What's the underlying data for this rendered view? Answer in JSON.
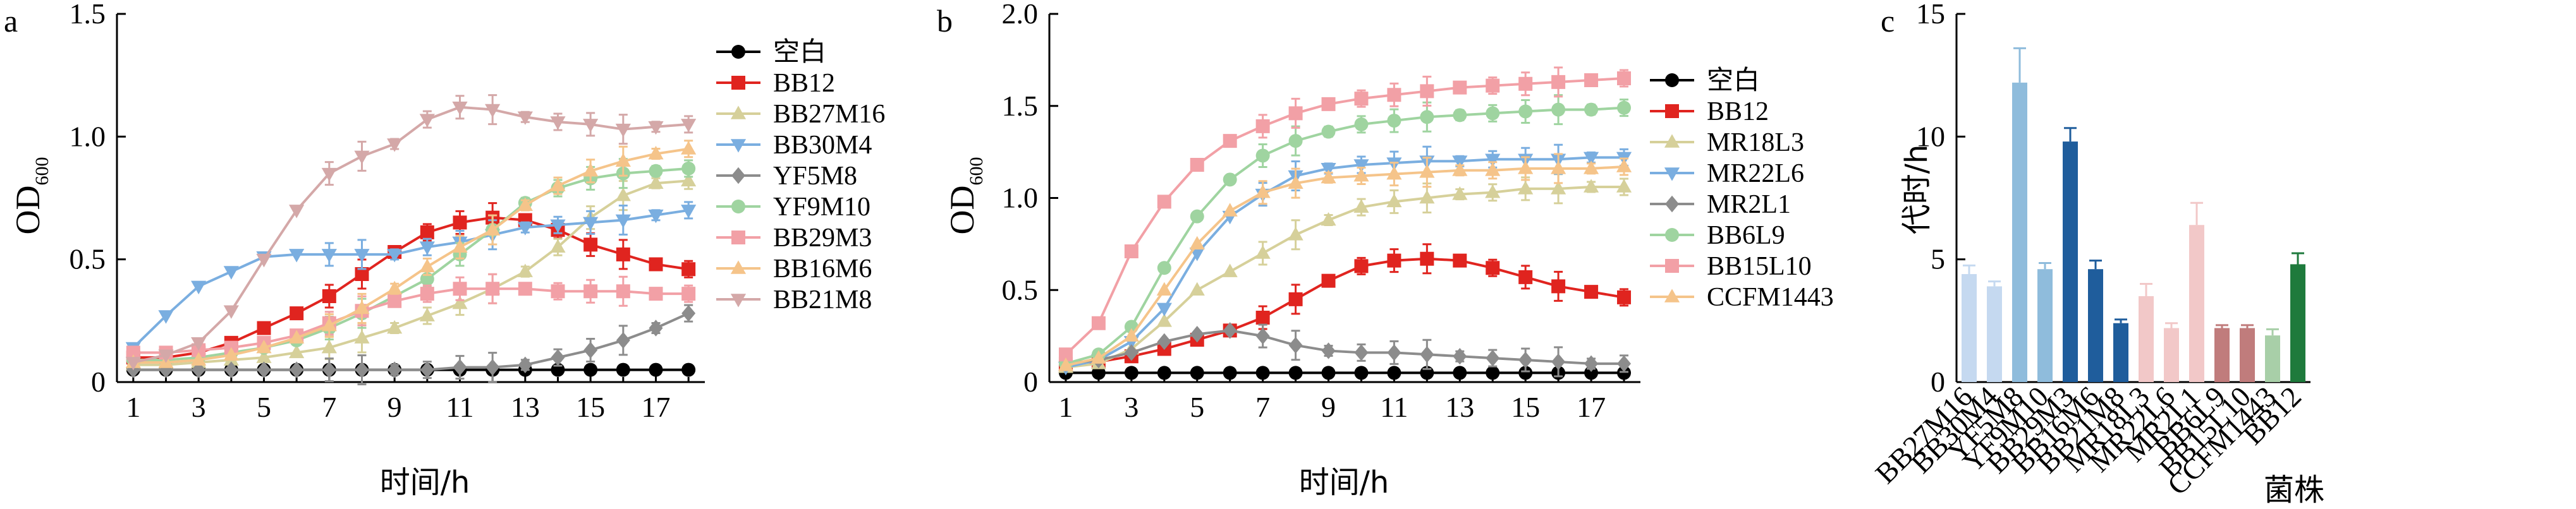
{
  "chart_data": [
    {
      "panel": "a",
      "type": "line",
      "xlabel": "时间/h",
      "ylabel": "OD",
      "ylabel_sub": "600",
      "xlim": [
        0.5,
        18.5
      ],
      "ylim": [
        0,
        1.5
      ],
      "xticks": [
        1,
        3,
        5,
        7,
        9,
        11,
        13,
        15,
        17
      ],
      "yticks": [
        "0",
        "0.5",
        "1.0",
        "1.5"
      ],
      "x": [
        1,
        2,
        3,
        4,
        5,
        6,
        7,
        8,
        9,
        10,
        11,
        12,
        13,
        14,
        15,
        16,
        17,
        18
      ],
      "series": [
        {
          "name": "空白",
          "color": "#000000",
          "marker": "circle",
          "values": [
            0.05,
            0.05,
            0.05,
            0.05,
            0.05,
            0.05,
            0.05,
            0.05,
            0.05,
            0.05,
            0.05,
            0.05,
            0.05,
            0.05,
            0.05,
            0.05,
            0.05,
            0.05
          ]
        },
        {
          "name": "BB12",
          "color": "#e0241f",
          "marker": "square",
          "values": [
            0.1,
            0.1,
            0.12,
            0.16,
            0.22,
            0.28,
            0.35,
            0.44,
            0.53,
            0.61,
            0.65,
            0.67,
            0.66,
            0.62,
            0.56,
            0.52,
            0.48,
            0.46
          ]
        },
        {
          "name": "BB27M16",
          "color": "#d6d09a",
          "marker": "triangle-up",
          "values": [
            0.07,
            0.07,
            0.08,
            0.09,
            0.1,
            0.12,
            0.14,
            0.18,
            0.22,
            0.27,
            0.32,
            0.38,
            0.45,
            0.55,
            0.67,
            0.76,
            0.81,
            0.82
          ]
        },
        {
          "name": "BB30M4",
          "color": "#7aaee0",
          "marker": "triangle-down",
          "values": [
            0.14,
            0.27,
            0.39,
            0.45,
            0.51,
            0.52,
            0.52,
            0.52,
            0.52,
            0.55,
            0.57,
            0.6,
            0.63,
            0.64,
            0.65,
            0.66,
            0.68,
            0.7
          ]
        },
        {
          "name": "YF5M8",
          "color": "#8c8c8c",
          "marker": "diamond",
          "values": [
            0.05,
            0.05,
            0.05,
            0.05,
            0.05,
            0.05,
            0.05,
            0.05,
            0.05,
            0.05,
            0.06,
            0.06,
            0.07,
            0.1,
            0.13,
            0.17,
            0.22,
            0.28
          ]
        },
        {
          "name": "YF9M10",
          "color": "#9fd4a0",
          "marker": "circle",
          "values": [
            0.09,
            0.09,
            0.1,
            0.12,
            0.14,
            0.17,
            0.22,
            0.28,
            0.35,
            0.42,
            0.52,
            0.62,
            0.73,
            0.79,
            0.83,
            0.85,
            0.86,
            0.87
          ]
        },
        {
          "name": "BB29M3",
          "color": "#f2a0a6",
          "marker": "square",
          "values": [
            0.12,
            0.12,
            0.13,
            0.14,
            0.16,
            0.19,
            0.24,
            0.29,
            0.33,
            0.36,
            0.38,
            0.38,
            0.38,
            0.37,
            0.37,
            0.37,
            0.36,
            0.36
          ]
        },
        {
          "name": "BB16M6",
          "color": "#f5c48a",
          "marker": "triangle-up",
          "values": [
            0.08,
            0.08,
            0.09,
            0.11,
            0.14,
            0.18,
            0.23,
            0.3,
            0.38,
            0.47,
            0.55,
            0.62,
            0.72,
            0.8,
            0.86,
            0.9,
            0.93,
            0.95
          ]
        },
        {
          "name": "BB21M8",
          "color": "#d4a8a8",
          "marker": "triangle-down",
          "values": [
            0.08,
            0.11,
            0.16,
            0.29,
            0.5,
            0.7,
            0.85,
            0.92,
            0.97,
            1.07,
            1.12,
            1.11,
            1.08,
            1.06,
            1.05,
            1.03,
            1.04,
            1.05
          ]
        }
      ]
    },
    {
      "panel": "b",
      "type": "line",
      "xlabel": "时间/h",
      "ylabel": "OD",
      "ylabel_sub": "600",
      "xlim": [
        0.5,
        18.5
      ],
      "ylim": [
        0,
        2.0
      ],
      "xticks": [
        1,
        3,
        5,
        7,
        9,
        11,
        13,
        15,
        17
      ],
      "yticks": [
        "0",
        "0.5",
        "1.0",
        "1.5",
        "2.0"
      ],
      "x": [
        1,
        2,
        3,
        4,
        5,
        6,
        7,
        8,
        9,
        10,
        11,
        12,
        13,
        14,
        15,
        16,
        17,
        18
      ],
      "series": [
        {
          "name": "空白",
          "color": "#000000",
          "marker": "circle",
          "values": [
            0.05,
            0.05,
            0.05,
            0.05,
            0.05,
            0.05,
            0.05,
            0.05,
            0.05,
            0.05,
            0.05,
            0.05,
            0.05,
            0.05,
            0.05,
            0.05,
            0.05,
            0.05
          ]
        },
        {
          "name": "BB12",
          "color": "#e0241f",
          "marker": "square",
          "values": [
            0.1,
            0.11,
            0.14,
            0.18,
            0.23,
            0.28,
            0.35,
            0.45,
            0.55,
            0.63,
            0.66,
            0.67,
            0.66,
            0.62,
            0.57,
            0.52,
            0.49,
            0.46
          ]
        },
        {
          "name": "MR18L3",
          "color": "#d6d09a",
          "marker": "triangle-up",
          "values": [
            0.08,
            0.1,
            0.18,
            0.33,
            0.5,
            0.6,
            0.7,
            0.8,
            0.88,
            0.95,
            0.98,
            1.0,
            1.02,
            1.03,
            1.05,
            1.05,
            1.06,
            1.06
          ]
        },
        {
          "name": "MR22L6",
          "color": "#7aaee0",
          "marker": "triangle-down",
          "values": [
            0.08,
            0.12,
            0.22,
            0.4,
            0.7,
            0.9,
            1.02,
            1.12,
            1.16,
            1.18,
            1.19,
            1.2,
            1.2,
            1.21,
            1.21,
            1.21,
            1.22,
            1.22
          ]
        },
        {
          "name": "MR2L1",
          "color": "#8c8c8c",
          "marker": "diamond",
          "values": [
            0.1,
            0.12,
            0.16,
            0.22,
            0.26,
            0.28,
            0.25,
            0.2,
            0.17,
            0.16,
            0.16,
            0.15,
            0.14,
            0.13,
            0.12,
            0.11,
            0.1,
            0.1
          ]
        },
        {
          "name": "BB6L9",
          "color": "#9fd4a0",
          "marker": "circle",
          "values": [
            0.1,
            0.15,
            0.3,
            0.62,
            0.9,
            1.1,
            1.23,
            1.31,
            1.36,
            1.4,
            1.42,
            1.44,
            1.45,
            1.46,
            1.47,
            1.48,
            1.48,
            1.49
          ]
        },
        {
          "name": "BB15L10",
          "color": "#f2a0a6",
          "marker": "square",
          "values": [
            0.15,
            0.32,
            0.71,
            0.98,
            1.18,
            1.31,
            1.39,
            1.46,
            1.51,
            1.54,
            1.56,
            1.58,
            1.6,
            1.61,
            1.62,
            1.63,
            1.64,
            1.65
          ]
        },
        {
          "name": "CCFM1443",
          "color": "#f5c48a",
          "marker": "triangle-up",
          "values": [
            0.09,
            0.13,
            0.25,
            0.5,
            0.75,
            0.93,
            1.03,
            1.08,
            1.11,
            1.12,
            1.13,
            1.14,
            1.15,
            1.15,
            1.16,
            1.16,
            1.16,
            1.17
          ]
        }
      ]
    },
    {
      "panel": "c",
      "type": "bar",
      "xlabel": "菌株",
      "ylabel": "代时/h",
      "ylim": [
        0,
        15
      ],
      "yticks": [
        "0",
        "5",
        "10",
        "15"
      ],
      "categories": [
        "BB27M16",
        "BB30M4",
        "YF5M8",
        "YF9M10",
        "BB29M3",
        "BB16M6",
        "BB21M8",
        "MR18L3",
        "MR22L6",
        "MR2L1",
        "BB6L9",
        "BB15L10",
        "CCFM1443",
        "BB12"
      ],
      "values": [
        4.4,
        3.9,
        12.2,
        4.6,
        9.8,
        4.6,
        2.4,
        3.5,
        2.2,
        6.4,
        2.2,
        2.2,
        1.9,
        4.8
      ],
      "errors": [
        0.35,
        0.2,
        1.4,
        0.25,
        0.55,
        0.35,
        0.15,
        0.5,
        0.2,
        0.9,
        0.12,
        0.12,
        0.25,
        0.45
      ],
      "colors": [
        "#c5d9f0",
        "#c5d9f0",
        "#8fbcdc",
        "#8fbcdc",
        "#1f5d9c",
        "#1f5d9c",
        "#1f5d9c",
        "#f2c8c8",
        "#f2c8c8",
        "#f2c8c8",
        "#c07c7c",
        "#c07c7c",
        "#a8cfa8",
        "#1e7a3c"
      ]
    }
  ]
}
